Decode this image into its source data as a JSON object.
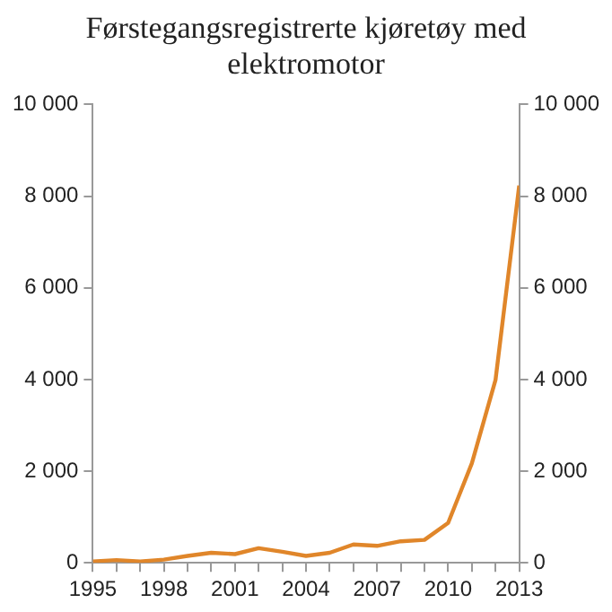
{
  "chart_data": {
    "type": "line",
    "title": "Førstegangsregistrerte kjøretøy med elektromotor",
    "x": [
      1995,
      1996,
      1997,
      1998,
      1999,
      2000,
      2001,
      2002,
      2003,
      2004,
      2005,
      2006,
      2007,
      2008,
      2009,
      2010,
      2011,
      2012,
      2013
    ],
    "series": [
      {
        "color": "#e0862a",
        "values": [
          30,
          60,
          30,
          70,
          150,
          220,
          190,
          320,
          240,
          150,
          220,
          400,
          370,
          470,
          500,
          870,
          2170,
          3990,
          8230
        ]
      }
    ],
    "xlim": [
      1995,
      2013
    ],
    "xticks": [
      1995,
      {
        "value": 1996,
        "label": null
      },
      {
        "value": 1997,
        "label": null
      },
      1998,
      {
        "value": 1999,
        "label": null
      },
      {
        "value": 2000,
        "label": null
      },
      2001,
      {
        "value": 2002,
        "label": null
      },
      {
        "value": 2003,
        "label": null
      },
      2004,
      {
        "value": 2005,
        "label": null
      },
      {
        "value": 2006,
        "label": null
      },
      2007,
      {
        "value": 2008,
        "label": null
      },
      {
        "value": 2009,
        "label": null
      },
      2010,
      {
        "value": 2011,
        "label": null
      },
      {
        "value": 2012,
        "label": null
      },
      2013
    ],
    "ylim": [
      0,
      10000
    ],
    "yticks": [
      0,
      {
        "value": 2000,
        "label": "2 000"
      },
      {
        "value": 4000,
        "label": "4 000"
      },
      {
        "value": 6000,
        "label": "6 000"
      },
      {
        "value": 8000,
        "label": "8 000"
      },
      {
        "value": 10000,
        "label": "10 000"
      }
    ],
    "y2lim": [
      0,
      10000
    ],
    "y2ticks": [
      0,
      {
        "value": 2000,
        "label": "2 000"
      },
      {
        "value": 4000,
        "label": "4 000"
      },
      {
        "value": 6000,
        "label": "6 000"
      },
      {
        "value": 8000,
        "label": "8 000"
      },
      {
        "value": 10000,
        "label": "10 000"
      }
    ],
    "grid": false,
    "legend": false,
    "marker": "none",
    "line_style": "solid"
  }
}
